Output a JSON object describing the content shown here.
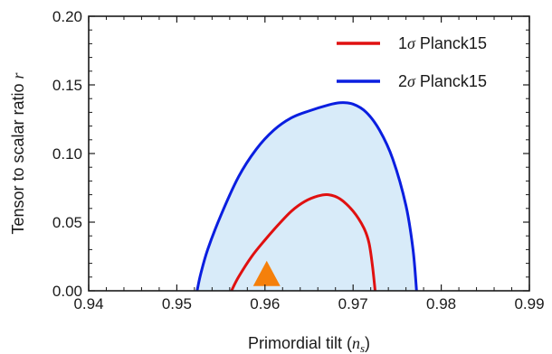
{
  "chart_data": {
    "type": "contour",
    "xlabel": {
      "prefix": "Primordial tilt (",
      "var": "n",
      "sub": "s",
      "suffix": ")"
    },
    "ylabel": {
      "text": "Tensor to scalar ratio ",
      "var": "r"
    },
    "xlim": [
      0.94,
      0.99
    ],
    "ylim": [
      0.0,
      0.2
    ],
    "x_ticks": [
      "0.94",
      "0.95",
      "0.96",
      "0.97",
      "0.98",
      "0.99"
    ],
    "y_ticks": [
      "0.00",
      "0.05",
      "0.10",
      "0.15",
      "0.20"
    ],
    "grid": false,
    "legend_position": "top-right",
    "series": [
      {
        "name": "1σ Planck15",
        "legend_num": "1",
        "legend_sym": "σ",
        "legend_rest": " Planck15",
        "color": "#e01010",
        "fill": "none",
        "points": [
          [
            0.9562,
            0.0
          ],
          [
            0.957,
            0.01
          ],
          [
            0.9585,
            0.025
          ],
          [
            0.96,
            0.037
          ],
          [
            0.9615,
            0.048
          ],
          [
            0.963,
            0.058
          ],
          [
            0.9645,
            0.065
          ],
          [
            0.966,
            0.069
          ],
          [
            0.9672,
            0.07
          ],
          [
            0.9685,
            0.067
          ],
          [
            0.97,
            0.058
          ],
          [
            0.9712,
            0.046
          ],
          [
            0.9718,
            0.035
          ],
          [
            0.9722,
            0.018
          ],
          [
            0.9725,
            0.0
          ]
        ]
      },
      {
        "name": "2σ Planck15",
        "legend_num": "2",
        "legend_sym": "σ",
        "legend_rest": " Planck15",
        "color": "#0a1ee0",
        "fill": "#d8ebf9",
        "points": [
          [
            0.9523,
            0.0
          ],
          [
            0.9527,
            0.012
          ],
          [
            0.9535,
            0.03
          ],
          [
            0.955,
            0.055
          ],
          [
            0.957,
            0.083
          ],
          [
            0.959,
            0.103
          ],
          [
            0.961,
            0.117
          ],
          [
            0.963,
            0.126
          ],
          [
            0.965,
            0.131
          ],
          [
            0.967,
            0.135
          ],
          [
            0.9685,
            0.137
          ],
          [
            0.97,
            0.136
          ],
          [
            0.9715,
            0.13
          ],
          [
            0.973,
            0.117
          ],
          [
            0.9745,
            0.096
          ],
          [
            0.976,
            0.062
          ],
          [
            0.9768,
            0.03
          ],
          [
            0.9772,
            0.0
          ]
        ]
      }
    ],
    "markers": [
      {
        "shape": "triangle",
        "x": 0.9602,
        "y": 0.01,
        "color": "#f5800b"
      }
    ]
  }
}
